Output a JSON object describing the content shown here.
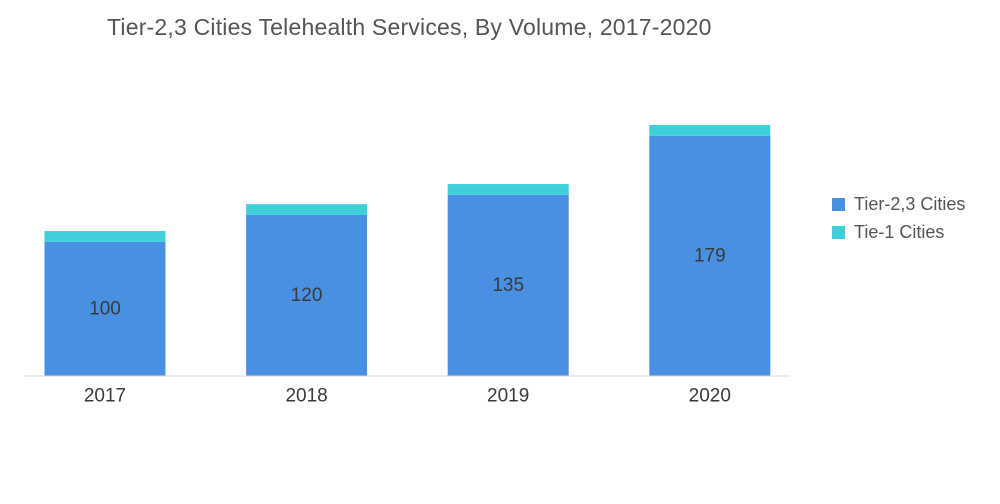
{
  "chart_data": {
    "type": "bar",
    "stacked": true,
    "title": "Tier-2,3 Cities Telehealth Services, By Volume, 2017-2020",
    "categories": [
      "2017",
      "2018",
      "2019",
      "2020"
    ],
    "series": [
      {
        "name": "Tier-2,3 Cities",
        "color": "#4a90e2",
        "values": [
          100,
          120,
          135,
          179
        ],
        "data_labels": [
          "100",
          "120",
          "135",
          "179"
        ]
      },
      {
        "name": "Tie-1 Cities",
        "color": "#3ecfd8",
        "values": [
          8,
          8,
          8,
          8
        ]
      }
    ],
    "xlabel": "",
    "ylabel": "",
    "ylim": [
      0,
      187
    ],
    "grid": false,
    "legend": "right"
  }
}
